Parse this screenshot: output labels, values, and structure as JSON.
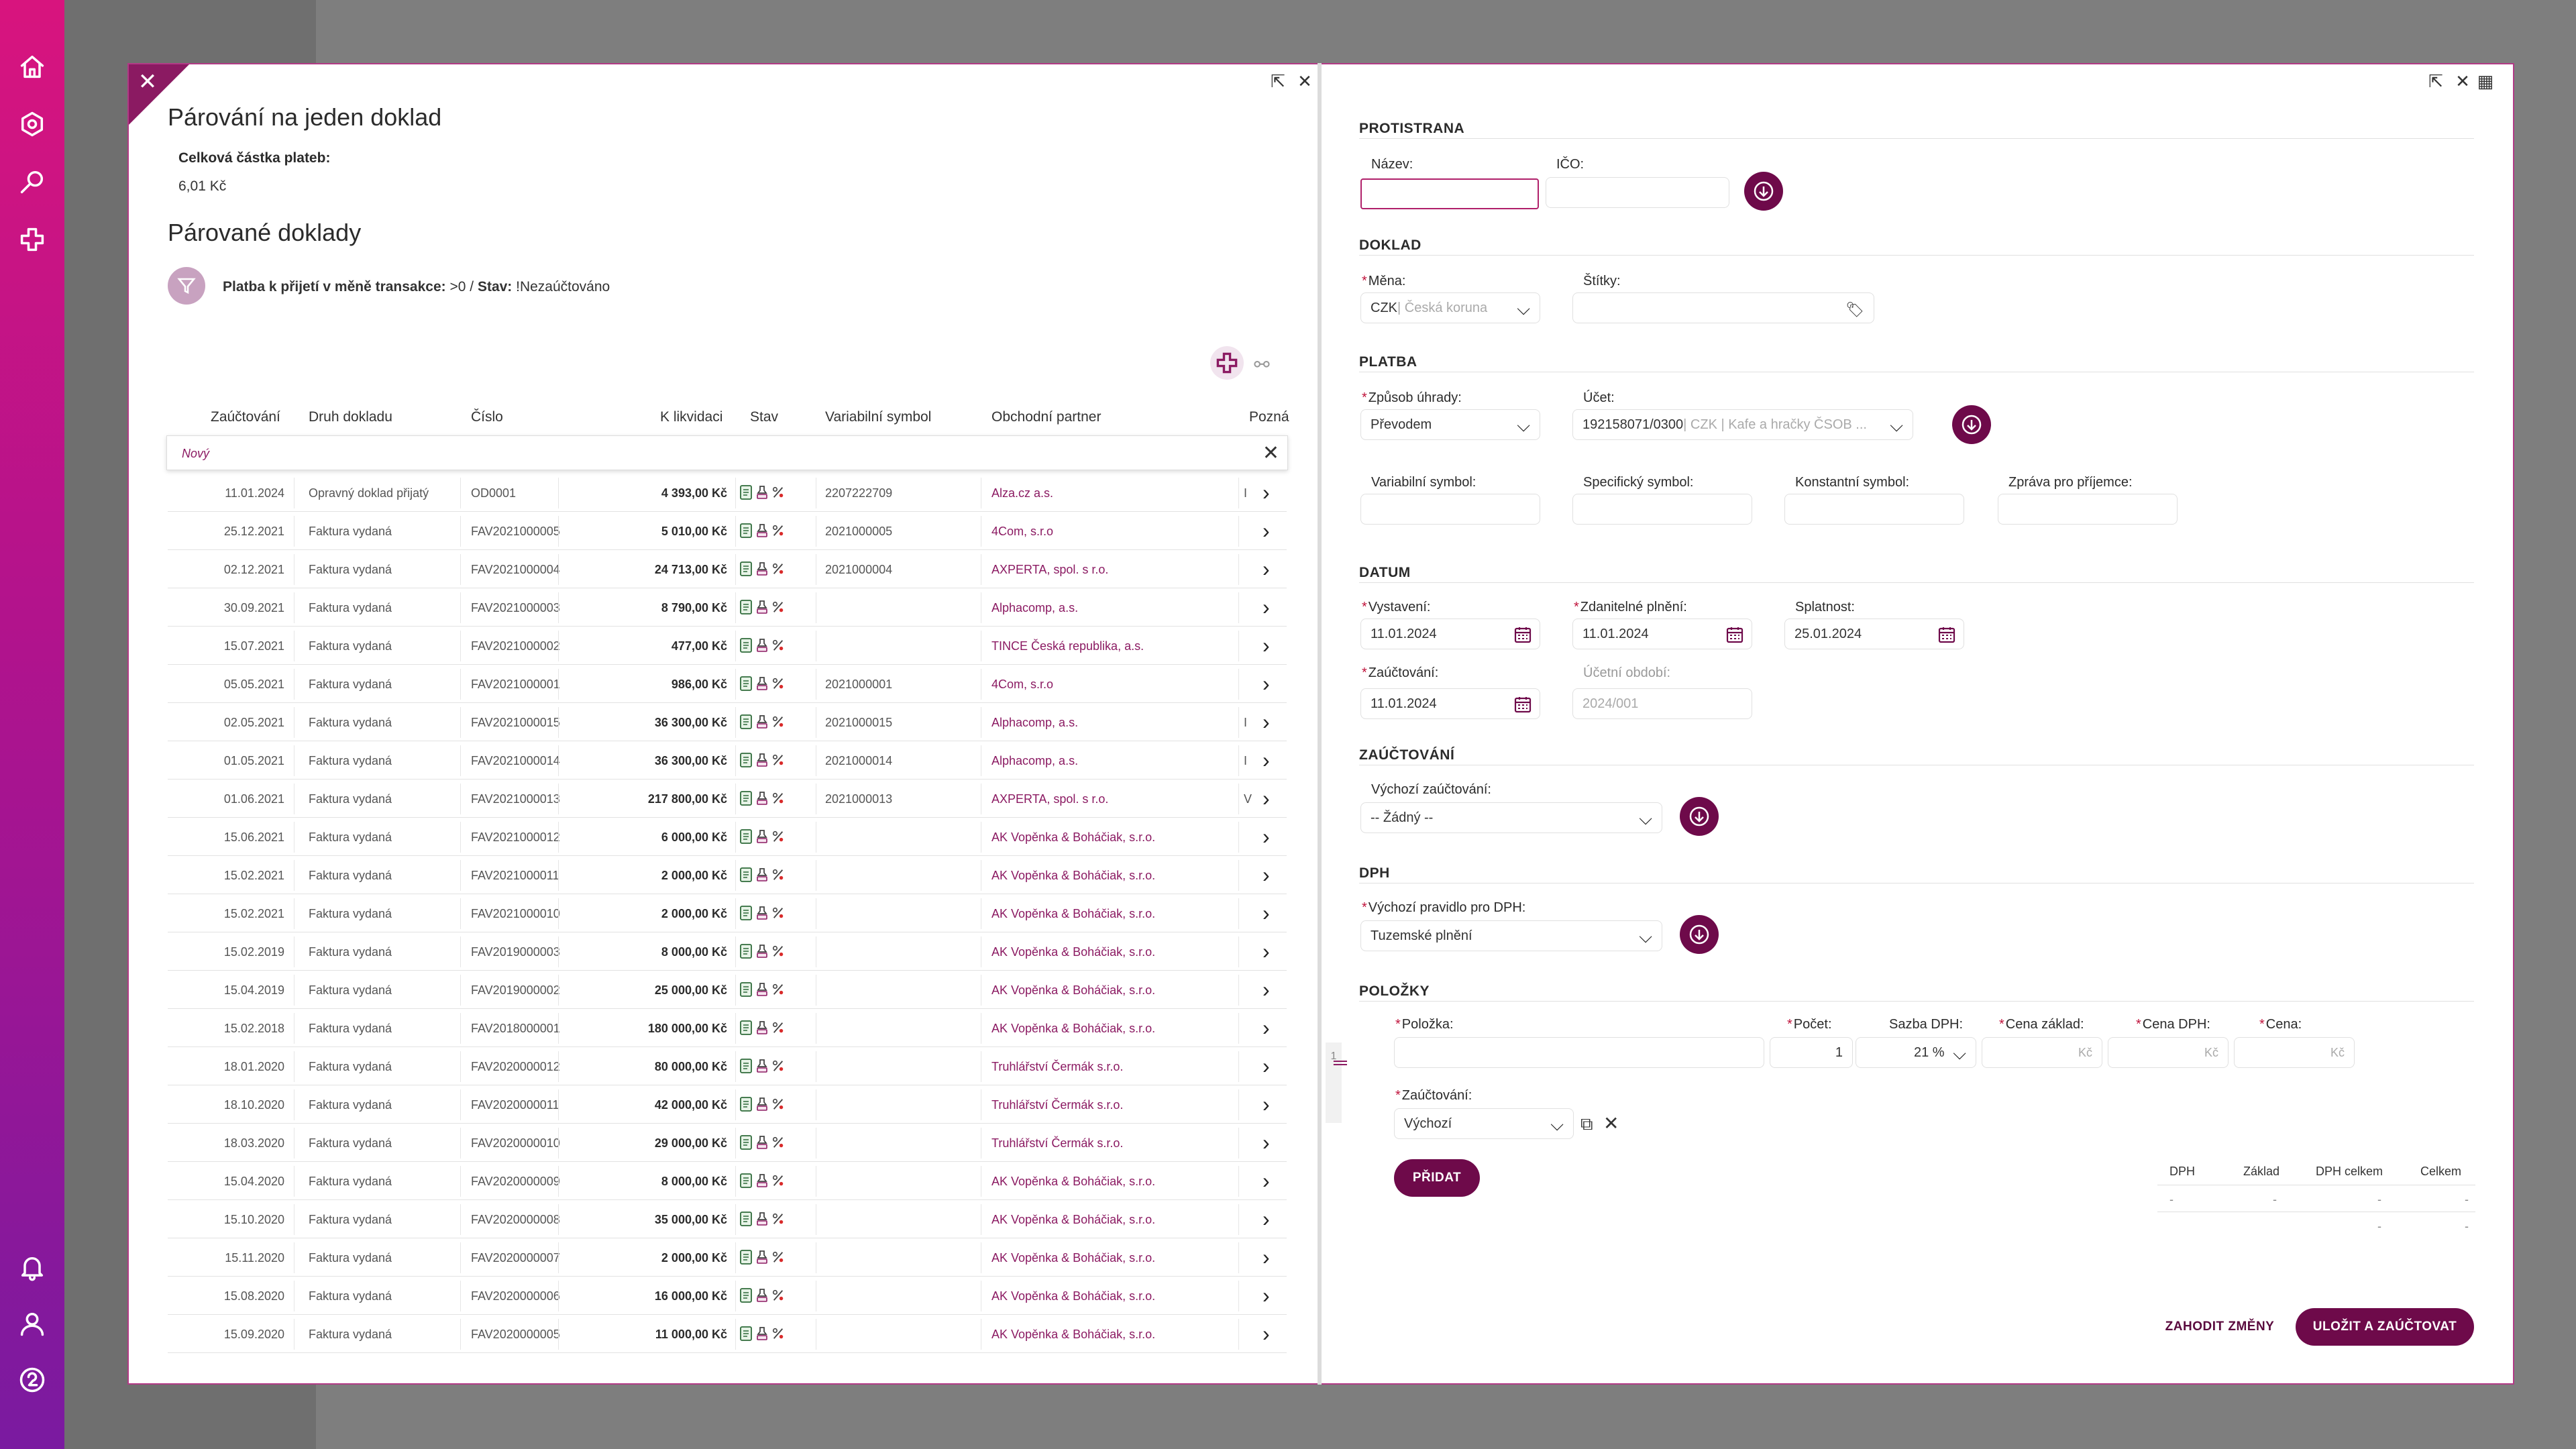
{
  "left_dialog": {
    "title": "Párování na jeden doklad",
    "total_label": "Celková částka plateb:",
    "total_value": "6,01 Kč",
    "subtitle": "Párované doklady",
    "filter_prefix": "Platba k přijetí v měně transakce:",
    "filter_value1": " >0 / ",
    "filter_prefix2": "Stav:",
    "filter_value2": " !Nezaúčtováno",
    "columns": [
      "Zaúčtování",
      "Druh dokladu",
      "Číslo",
      "K likvidaci",
      "Stav",
      "Variabilní symbol",
      "Obchodní partner",
      "Pozná"
    ],
    "new_row_label": "Nový",
    "rows": [
      {
        "date": "11.01.2024",
        "type": "Opravný doklad přijatý",
        "num": "OD0001",
        "amt": "4 393,00 Kč",
        "vs": "2207222709",
        "partner": "Alza.cz a.s.",
        "tick": "I"
      },
      {
        "date": "25.12.2021",
        "type": "Faktura vydaná",
        "num": "FAV2021000005",
        "amt": "5 010,00 Kč",
        "vs": "2021000005",
        "partner": "4Com, s.r.o",
        "tick": ""
      },
      {
        "date": "02.12.2021",
        "type": "Faktura vydaná",
        "num": "FAV2021000004",
        "amt": "24 713,00 Kč",
        "vs": "2021000004",
        "partner": "AXPERTA, spol. s r.o.",
        "tick": ""
      },
      {
        "date": "30.09.2021",
        "type": "Faktura vydaná",
        "num": "FAV2021000003",
        "amt": "8 790,00 Kč",
        "vs": "",
        "partner": "Alphacomp, a.s.",
        "tick": ""
      },
      {
        "date": "15.07.2021",
        "type": "Faktura vydaná",
        "num": "FAV2021000002",
        "amt": "477,00 Kč",
        "vs": "",
        "partner": "TINCE Česká republika, a.s.",
        "tick": ""
      },
      {
        "date": "05.05.2021",
        "type": "Faktura vydaná",
        "num": "FAV2021000001",
        "amt": "986,00 Kč",
        "vs": "2021000001",
        "partner": "4Com, s.r.o",
        "tick": ""
      },
      {
        "date": "02.05.2021",
        "type": "Faktura vydaná",
        "num": "FAV2021000015",
        "amt": "36 300,00 Kč",
        "vs": "2021000015",
        "partner": "Alphacomp, a.s.",
        "tick": "I"
      },
      {
        "date": "01.05.2021",
        "type": "Faktura vydaná",
        "num": "FAV2021000014",
        "amt": "36 300,00 Kč",
        "vs": "2021000014",
        "partner": "Alphacomp, a.s.",
        "tick": "I"
      },
      {
        "date": "01.06.2021",
        "type": "Faktura vydaná",
        "num": "FAV2021000013",
        "amt": "217 800,00 Kč",
        "vs": "2021000013",
        "partner": "AXPERTA, spol. s r.o.",
        "tick": "V"
      },
      {
        "date": "15.06.2021",
        "type": "Faktura vydaná",
        "num": "FAV2021000012",
        "amt": "6 000,00 Kč",
        "vs": "",
        "partner": "AK Vopěnka & Boháčiak, s.r.o.",
        "tick": ""
      },
      {
        "date": "15.02.2021",
        "type": "Faktura vydaná",
        "num": "FAV2021000011",
        "amt": "2 000,00 Kč",
        "vs": "",
        "partner": "AK Vopěnka & Boháčiak, s.r.o.",
        "tick": ""
      },
      {
        "date": "15.02.2021",
        "type": "Faktura vydaná",
        "num": "FAV2021000010",
        "amt": "2 000,00 Kč",
        "vs": "",
        "partner": "AK Vopěnka & Boháčiak, s.r.o.",
        "tick": ""
      },
      {
        "date": "15.02.2019",
        "type": "Faktura vydaná",
        "num": "FAV2019000003",
        "amt": "8 000,00 Kč",
        "vs": "",
        "partner": "AK Vopěnka & Boháčiak, s.r.o.",
        "tick": ""
      },
      {
        "date": "15.04.2019",
        "type": "Faktura vydaná",
        "num": "FAV2019000002",
        "amt": "25 000,00 Kč",
        "vs": "",
        "partner": "AK Vopěnka & Boháčiak, s.r.o.",
        "tick": ""
      },
      {
        "date": "15.02.2018",
        "type": "Faktura vydaná",
        "num": "FAV2018000001",
        "amt": "180 000,00 Kč",
        "vs": "",
        "partner": "AK Vopěnka & Boháčiak, s.r.o.",
        "tick": ""
      },
      {
        "date": "18.01.2020",
        "type": "Faktura vydaná",
        "num": "FAV2020000012",
        "amt": "80 000,00 Kč",
        "vs": "",
        "partner": "Truhlářství Čermák s.r.o.",
        "tick": ""
      },
      {
        "date": "18.10.2020",
        "type": "Faktura vydaná",
        "num": "FAV2020000011",
        "amt": "42 000,00 Kč",
        "vs": "",
        "partner": "Truhlářství Čermák s.r.o.",
        "tick": ""
      },
      {
        "date": "18.03.2020",
        "type": "Faktura vydaná",
        "num": "FAV2020000010",
        "amt": "29 000,00 Kč",
        "vs": "",
        "partner": "Truhlářství Čermák s.r.o.",
        "tick": ""
      },
      {
        "date": "15.04.2020",
        "type": "Faktura vydaná",
        "num": "FAV2020000009",
        "amt": "8 000,00 Kč",
        "vs": "",
        "partner": "AK Vopěnka & Boháčiak, s.r.o.",
        "tick": ""
      },
      {
        "date": "15.10.2020",
        "type": "Faktura vydaná",
        "num": "FAV2020000008",
        "amt": "35 000,00 Kč",
        "vs": "",
        "partner": "AK Vopěnka & Boháčiak, s.r.o.",
        "tick": ""
      },
      {
        "date": "15.11.2020",
        "type": "Faktura vydaná",
        "num": "FAV2020000007",
        "amt": "2 000,00 Kč",
        "vs": "",
        "partner": "AK Vopěnka & Boháčiak, s.r.o.",
        "tick": ""
      },
      {
        "date": "15.08.2020",
        "type": "Faktura vydaná",
        "num": "FAV2020000006",
        "amt": "16 000,00 Kč",
        "vs": "",
        "partner": "AK Vopěnka & Boháčiak, s.r.o.",
        "tick": ""
      },
      {
        "date": "15.09.2020",
        "type": "Faktura vydaná",
        "num": "FAV2020000005",
        "amt": "11 000,00 Kč",
        "vs": "",
        "partner": "AK Vopěnka & Boháčiak, s.r.o.",
        "tick": ""
      }
    ]
  },
  "right_dialog": {
    "sections": {
      "protistrana": "PROTISTRANA",
      "doklad": "DOKLAD",
      "platba": "PLATBA",
      "datum": "DATUM",
      "zauctovani": "ZAÚČTOVÁNÍ",
      "dph": "DPH",
      "polozky": "POLOŽKY"
    },
    "nazev_label": "Název:",
    "nazev_value": "",
    "ico_label": "IČO:",
    "ico_value": "",
    "mena_label": "Měna:",
    "mena_code": "CZK",
    "mena_name": " | Česká koruna",
    "stitky_label": "Štítky:",
    "zpusob_label": "Způsob úhrady:",
    "zpusob_value": "Převodem",
    "ucet_label": "Účet:",
    "ucet_value": "192158071/0300",
    "ucet_detail": " | CZK | Kafe a hračky ČSOB ...",
    "vs_label": "Variabilní symbol:",
    "ss_label": "Specifický symbol:",
    "ks_label": "Konstantní symbol:",
    "zprava_label": "Zpráva pro příjemce:",
    "vystaveni_label": "Vystavení:",
    "vystaveni_value": "11.01.2024",
    "zdanitelne_label": "Zdanitelné plnění:",
    "zdanitelne_value": "11.01.2024",
    "splatnost_label": "Splatnost:",
    "splatnost_value": "25.01.2024",
    "zauct_label": "Zaúčtování:",
    "zauct_value": "11.01.2024",
    "ucetni_obdobi_label": "Účetní období:",
    "ucetni_obdobi_value": "2024/001",
    "vychozi_zauct_label": "Výchozí zaúčtování:",
    "vychozi_zauct_value": "-- Žádný --",
    "vychozi_dph_label": "Výchozí pravidlo pro DPH:",
    "vychozi_dph_value": "Tuzemské plnění",
    "item_index": "1",
    "polozka_label": "Položka:",
    "pocet_label": "Počet:",
    "pocet_value": "1",
    "sazba_label": "Sazba DPH:",
    "sazba_value": "21 %",
    "cena_zaklad_label": "Cena základ:",
    "cena_dph_label": "Cena DPH:",
    "cena_label": "Cena:",
    "currency": "Kč",
    "item_zauct_label": "Zaúčtování:",
    "item_zauct_value": "Výchozí",
    "pridat": "PŘIDAT",
    "summary_headers": [
      "DPH",
      "Základ",
      "DPH celkem",
      "Celkem"
    ],
    "summary_dash": "-",
    "zahodit": "ZAHODIT ZMĚNY",
    "ulozit": "ULOŽIT A ZAÚČTOVAT"
  },
  "colors": {
    "accent": "#6e0a4a",
    "link": "#8b1a62",
    "required": "#c0143c"
  }
}
